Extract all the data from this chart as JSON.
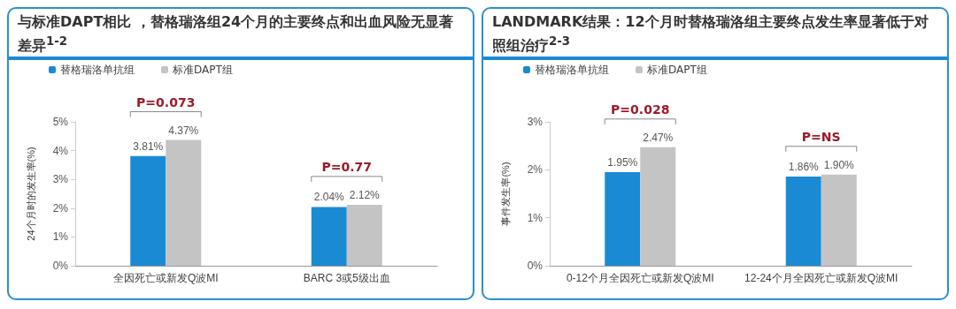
{
  "chart_data": [
    {
      "type": "bar",
      "title": "与标准DAPT相比 ，替格瑞洛组24个月的主要终点和出血风险无显著差异$^{1-2}$",
      "ylabel": "24个月时的发生率(%)",
      "categories": [
        "全因死亡或新发Q波MI",
        "BARC 3或5级出血"
      ],
      "series": [
        {
          "name": "替格瑞洛单抗组",
          "color": "#1a8ad4",
          "values": [
            3.81,
            2.04
          ],
          "value_labels": [
            "3.81%",
            "2.04%"
          ]
        },
        {
          "name": "标准DAPT组",
          "color": "#c4c4c4",
          "values": [
            4.37,
            2.12
          ],
          "value_labels": [
            "4.37%",
            "2.12%"
          ]
        }
      ],
      "ylim": [
        0,
        5
      ],
      "yticks": [
        {
          "value": 0,
          "label": "0%"
        },
        {
          "value": 1,
          "label": "1%"
        },
        {
          "value": 2,
          "label": "2%"
        },
        {
          "value": 3,
          "label": "3%"
        },
        {
          "value": 4,
          "label": "4%"
        },
        {
          "value": 5,
          "label": "5%"
        }
      ],
      "annotations": [
        "P=0.073",
        "P=0.77"
      ],
      "legend": "top left",
      "grid": false
    },
    {
      "type": "bar",
      "title": "LANDMARK结果：12个月时替格瑞洛组主要终点发生率显著低于对照组治疗$^{2-3}$",
      "ylabel": "事件发生率(%)",
      "categories": [
        "0-12个月全因死亡或新发Q波MI",
        "12-24个月全因死亡或新发Q波MI"
      ],
      "series": [
        {
          "name": "替格瑞洛单抗组",
          "color": "#1a8ad4",
          "values": [
            1.95,
            1.86
          ],
          "value_labels": [
            "1.95%",
            "1.86%"
          ]
        },
        {
          "name": "标准DAPT组",
          "color": "#c4c4c4",
          "values": [
            2.47,
            1.9
          ],
          "value_labels": [
            "2.47%",
            "1.90%"
          ]
        }
      ],
      "ylim": [
        0,
        3
      ],
      "yticks": [
        {
          "value": 0,
          "label": "0%"
        },
        {
          "value": 1,
          "label": "1%"
        },
        {
          "value": 2,
          "label": "2%"
        },
        {
          "value": 3,
          "label": "3%"
        }
      ],
      "annotations": [
        "P=0.028",
        "P=NS"
      ],
      "legend": "top left",
      "grid": false
    }
  ]
}
